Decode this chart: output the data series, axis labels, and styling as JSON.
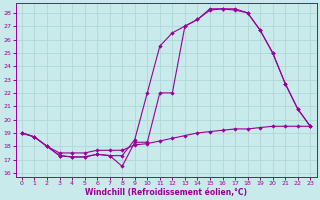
{
  "xlabel": "Windchill (Refroidissement éolien,°C)",
  "bg_color": "#c8eaea",
  "grid_color": "#b0d8d8",
  "line_color": "#990099",
  "x_ticks": [
    0,
    1,
    2,
    3,
    4,
    5,
    6,
    7,
    8,
    9,
    10,
    11,
    12,
    13,
    14,
    15,
    16,
    17,
    18,
    19,
    20,
    21,
    22,
    23
  ],
  "y_ticks": [
    16,
    17,
    18,
    19,
    20,
    21,
    22,
    23,
    24,
    25,
    26,
    27,
    28
  ],
  "xlim": [
    -0.5,
    23.5
  ],
  "ylim": [
    15.7,
    28.7
  ],
  "line1_x": [
    0,
    1,
    2,
    3,
    4,
    5,
    6,
    7,
    8,
    9,
    10,
    11,
    12,
    13,
    14,
    15,
    16,
    17,
    18,
    19,
    20,
    21,
    22,
    23
  ],
  "line1_y": [
    19.0,
    18.7,
    18.0,
    17.3,
    17.2,
    17.2,
    17.4,
    17.3,
    17.3,
    18.5,
    22.0,
    25.5,
    26.5,
    27.0,
    27.5,
    28.3,
    28.3,
    28.2,
    28.0,
    26.7,
    25.0,
    22.7,
    20.8,
    19.5
  ],
  "line2_x": [
    0,
    1,
    2,
    3,
    4,
    5,
    6,
    7,
    8,
    9,
    10,
    11,
    12,
    13,
    14,
    15,
    16,
    17,
    18,
    19,
    20,
    21,
    22,
    23
  ],
  "line2_y": [
    19.0,
    18.7,
    18.0,
    17.3,
    17.2,
    17.2,
    17.4,
    17.3,
    16.5,
    18.3,
    18.3,
    22.0,
    22.0,
    27.0,
    27.5,
    28.2,
    28.3,
    28.3,
    28.0,
    26.7,
    25.0,
    22.7,
    20.8,
    19.5
  ],
  "line3_x": [
    0,
    1,
    2,
    3,
    4,
    5,
    6,
    7,
    8,
    9,
    10,
    11,
    12,
    13,
    14,
    15,
    16,
    17,
    18,
    19,
    20,
    21,
    22,
    23
  ],
  "line3_y": [
    19.0,
    18.7,
    18.0,
    17.5,
    17.5,
    17.5,
    17.7,
    17.7,
    17.7,
    18.1,
    18.2,
    18.4,
    18.6,
    18.8,
    19.0,
    19.1,
    19.2,
    19.3,
    19.3,
    19.4,
    19.5,
    19.5,
    19.5,
    19.5
  ]
}
